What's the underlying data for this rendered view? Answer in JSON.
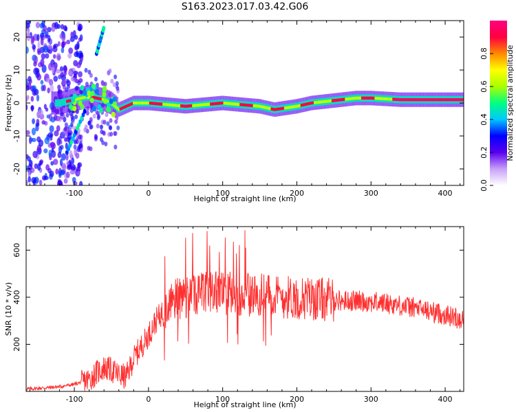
{
  "figure": {
    "title": "S163.2023.017.03.42.G06"
  },
  "chart_data": [
    {
      "type": "heatmap",
      "xlabel": "Height of straight line (km)",
      "ylabel": "Frequency (Hz)",
      "xlim": [
        -165,
        425
      ],
      "ylim": [
        -25,
        25
      ],
      "x_ticks": [
        -100,
        0,
        100,
        200,
        300,
        400
      ],
      "y_ticks": [
        -20,
        -10,
        0,
        10,
        20
      ],
      "grid": false,
      "ridge": {
        "x": [
          -120,
          -100,
          -80,
          -60,
          -50,
          -40,
          -20,
          0,
          50,
          100,
          150,
          170,
          200,
          220,
          240,
          260,
          280,
          300,
          340,
          380,
          425
        ],
        "y": [
          0,
          1,
          2,
          1,
          0,
          -2,
          0,
          0,
          -1,
          0,
          -1,
          -2,
          -1,
          0,
          0.5,
          1,
          1.5,
          1.5,
          1,
          1,
          1
        ]
      },
      "colorbar": {
        "label": "Normalized spectral amplitude",
        "range": [
          0,
          1
        ],
        "ticks": [
          "0.0",
          "0.2",
          "0.4",
          "0.6",
          "0.8"
        ],
        "ticks_values": [
          0.0,
          0.2,
          0.4,
          0.6,
          0.8
        ],
        "colors": [
          "#ffffff",
          "#c8a0f8",
          "#5a00f0",
          "#0000ff",
          "#00c8ff",
          "#00ff80",
          "#aaff00",
          "#ffff00",
          "#ff8800",
          "#ff0040",
          "#ff0080"
        ]
      }
    },
    {
      "type": "line",
      "xlabel": "Height of straight line (km)",
      "ylabel": "SNR (10 * v/v)",
      "xlim": [
        -165,
        425
      ],
      "ylim": [
        0,
        700
      ],
      "x_ticks": [
        -100,
        0,
        100,
        200,
        300,
        400
      ],
      "y_ticks": [
        200,
        400,
        600
      ],
      "grid": false,
      "series": [
        {
          "color": "#ff3030",
          "x": [
            -165,
            -140,
            -120,
            -100,
            -80,
            -70,
            -60,
            -50,
            -40,
            -30,
            -20,
            -10,
            0,
            10,
            20,
            30,
            40,
            60,
            80,
            100,
            120,
            140,
            160,
            180,
            200,
            220,
            240,
            260,
            280,
            300,
            320,
            340,
            360,
            380,
            400,
            425
          ],
          "y": [
            10,
            15,
            20,
            30,
            50,
            80,
            100,
            90,
            70,
            60,
            140,
            190,
            240,
            300,
            340,
            370,
            395,
            410,
            420,
            420,
            415,
            410,
            405,
            400,
            400,
            395,
            390,
            385,
            385,
            380,
            375,
            365,
            355,
            340,
            325,
            305
          ]
        }
      ]
    }
  ]
}
